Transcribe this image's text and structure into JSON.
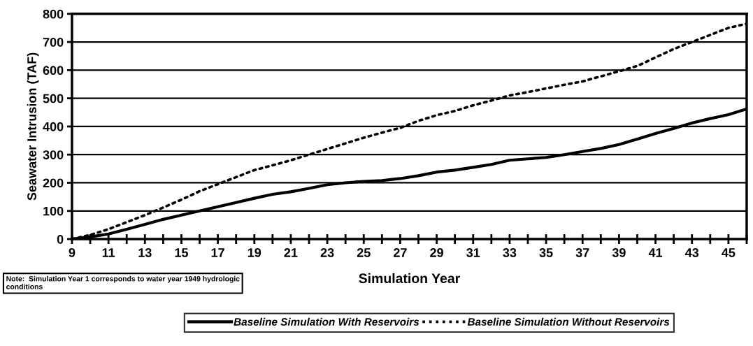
{
  "chart_data": {
    "type": "line",
    "xlabel": "Simulation Year",
    "ylabel": "Seawater Intrusion (TAF)",
    "x": [
      9,
      10,
      11,
      12,
      13,
      14,
      15,
      16,
      17,
      18,
      19,
      20,
      21,
      22,
      23,
      24,
      25,
      26,
      27,
      28,
      29,
      30,
      31,
      32,
      33,
      34,
      35,
      36,
      37,
      38,
      39,
      40,
      41,
      42,
      43,
      44,
      45,
      46
    ],
    "series": [
      {
        "name": "Baseline Simulation With Reservoirs",
        "color": "#000000",
        "line_style": "solid",
        "values": [
          0,
          8,
          18,
          35,
          52,
          70,
          85,
          100,
          115,
          130,
          145,
          159,
          168,
          180,
          193,
          200,
          205,
          208,
          215,
          225,
          238,
          245,
          255,
          265,
          280,
          285,
          290,
          300,
          311,
          322,
          336,
          355,
          375,
          393,
          412,
          428,
          442,
          462
        ]
      },
      {
        "name": "Baseline Simulation Without Reservoirs",
        "color": "#000000",
        "line_style": "dotted",
        "values": [
          0,
          15,
          35,
          60,
          85,
          112,
          140,
          170,
          195,
          220,
          245,
          262,
          280,
          300,
          320,
          340,
          360,
          378,
          395,
          420,
          440,
          455,
          475,
          492,
          510,
          522,
          535,
          548,
          560,
          578,
          596,
          615,
          645,
          675,
          700,
          725,
          750,
          765
        ]
      }
    ],
    "xlim": [
      9,
      46
    ],
    "xticks": [
      9,
      {
        "value": 10,
        "label": null
      },
      11,
      {
        "value": 12,
        "label": null
      },
      13,
      {
        "value": 14,
        "label": null
      },
      15,
      {
        "value": 16,
        "label": null
      },
      17,
      {
        "value": 18,
        "label": null
      },
      19,
      {
        "value": 20,
        "label": null
      },
      21,
      {
        "value": 22,
        "label": null
      },
      23,
      {
        "value": 24,
        "label": null
      },
      25,
      {
        "value": 26,
        "label": null
      },
      27,
      {
        "value": 28,
        "label": null
      },
      29,
      {
        "value": 30,
        "label": null
      },
      31,
      {
        "value": 32,
        "label": null
      },
      33,
      {
        "value": 34,
        "label": null
      },
      35,
      {
        "value": 36,
        "label": null
      },
      37,
      {
        "value": 38,
        "label": null
      },
      39,
      {
        "value": 40,
        "label": null
      },
      41,
      {
        "value": 42,
        "label": null
      },
      43,
      {
        "value": 44,
        "label": null
      },
      45,
      {
        "value": 46,
        "label": null
      }
    ],
    "ylim": [
      0,
      800
    ],
    "yticks": [
      0,
      100,
      200,
      300,
      400,
      500,
      600,
      700,
      800
    ],
    "grid": "y",
    "legend": "bottom",
    "annotations": [
      "Note:  Simulation Year 1 corresponds to water year 1949 hydrologic conditions"
    ]
  }
}
